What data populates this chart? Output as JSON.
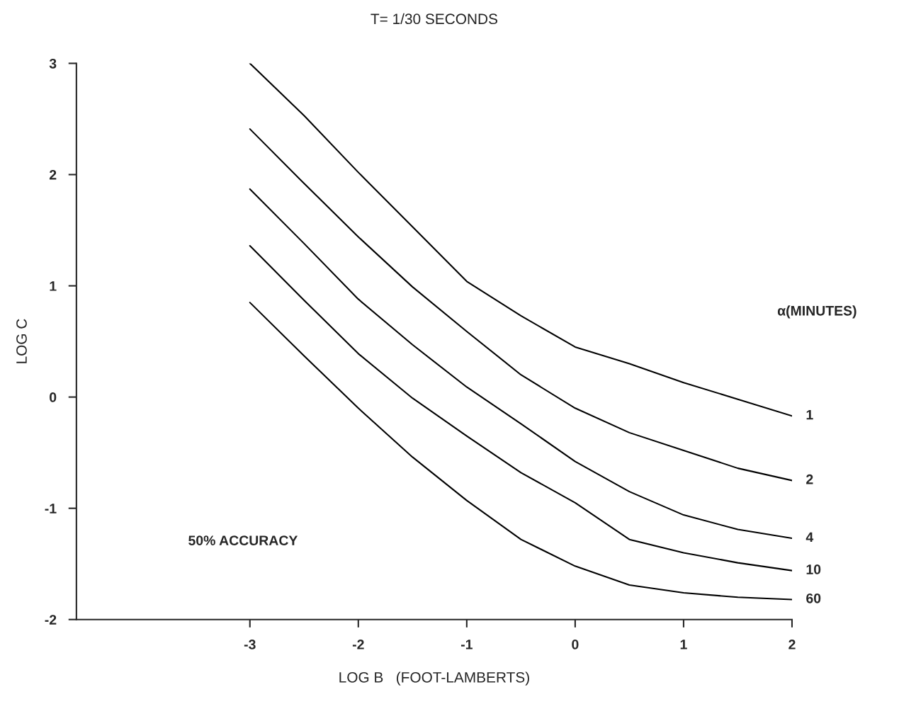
{
  "chart_data": {
    "type": "line",
    "title": "T= 1/30 SECONDS",
    "xlabel": "LOG B   (FOOT-LAMBERTS)",
    "ylabel": "LOG C",
    "legend_title": "α(MINUTES)",
    "annotations": [
      "50% ACCURACY"
    ],
    "x": [
      -3,
      -2.5,
      -2,
      -1.5,
      -1,
      -0.5,
      0,
      0.5,
      1,
      1.5,
      2
    ],
    "series": [
      {
        "name": "1",
        "color": "#000000",
        "values": [
          3.0,
          2.53,
          2.02,
          1.53,
          1.04,
          0.73,
          0.45,
          0.3,
          0.13,
          -0.02,
          -0.17
        ]
      },
      {
        "name": "2",
        "color": "#000000",
        "values": [
          2.41,
          1.92,
          1.44,
          0.99,
          0.59,
          0.2,
          -0.1,
          -0.32,
          -0.48,
          -0.64,
          -0.75
        ]
      },
      {
        "name": "4",
        "color": "#000000",
        "values": [
          1.87,
          1.38,
          0.88,
          0.47,
          0.09,
          -0.24,
          -0.58,
          -0.85,
          -1.06,
          -1.19,
          -1.27
        ]
      },
      {
        "name": "10",
        "color": "#000000",
        "values": [
          1.36,
          0.87,
          0.39,
          -0.01,
          -0.35,
          -0.68,
          -0.95,
          -1.28,
          -1.4,
          -1.49,
          -1.56
        ]
      },
      {
        "name": "60",
        "color": "#000000",
        "values": [
          0.85,
          0.37,
          -0.1,
          -0.54,
          -0.93,
          -1.28,
          -1.52,
          -1.69,
          -1.76,
          -1.8,
          -1.82
        ]
      }
    ],
    "xlim": [
      -4.6,
      2
    ],
    "ylim": [
      -2,
      3
    ],
    "xticks": [
      -3,
      -2,
      -1,
      0,
      1,
      2
    ],
    "yticks": [
      -2,
      -1,
      0,
      1,
      2,
      3
    ],
    "grid": false,
    "legend": false,
    "marker": "none",
    "line_style": "solid"
  }
}
